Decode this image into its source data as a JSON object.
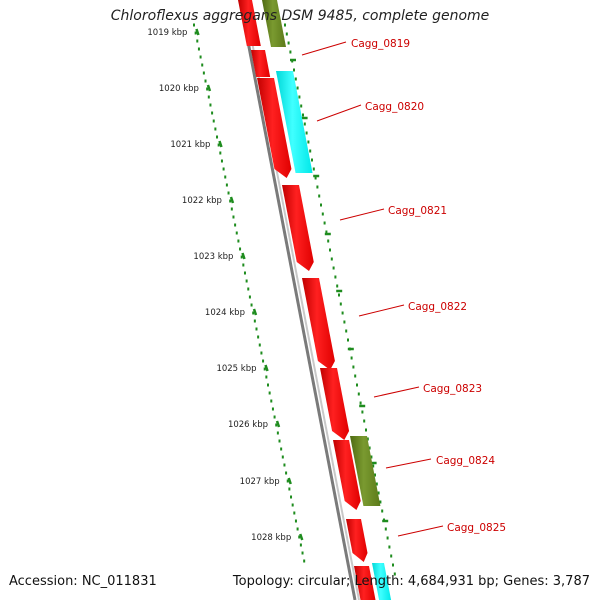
{
  "title": "Chloroflexus aggregans DSM 9485, complete genome",
  "accession": "Accession: NC_011831",
  "summary": "Topology: circular; Length: 4,684,931 bp; Genes: 3,787",
  "colors": {
    "red": "#ff0000",
    "olive": "#6b8e23",
    "cyan": "#00ffff",
    "tick": "#1e8c1e",
    "label": "#cc0000",
    "backbone": "#808080"
  },
  "kbp_labels": [
    "1019 kbp",
    "1020 kbp",
    "1021 kbp",
    "1022 kbp",
    "1023 kbp",
    "1024 kbp",
    "1025 kbp",
    "1026 kbp",
    "1027 kbp",
    "1028 kbp"
  ],
  "genes": [
    {
      "name": "Cagg_0819"
    },
    {
      "name": "Cagg_0820"
    },
    {
      "name": "Cagg_0821"
    },
    {
      "name": "Cagg_0822"
    },
    {
      "name": "Cagg_0823"
    },
    {
      "name": "Cagg_0824"
    },
    {
      "name": "Cagg_0825"
    }
  ]
}
